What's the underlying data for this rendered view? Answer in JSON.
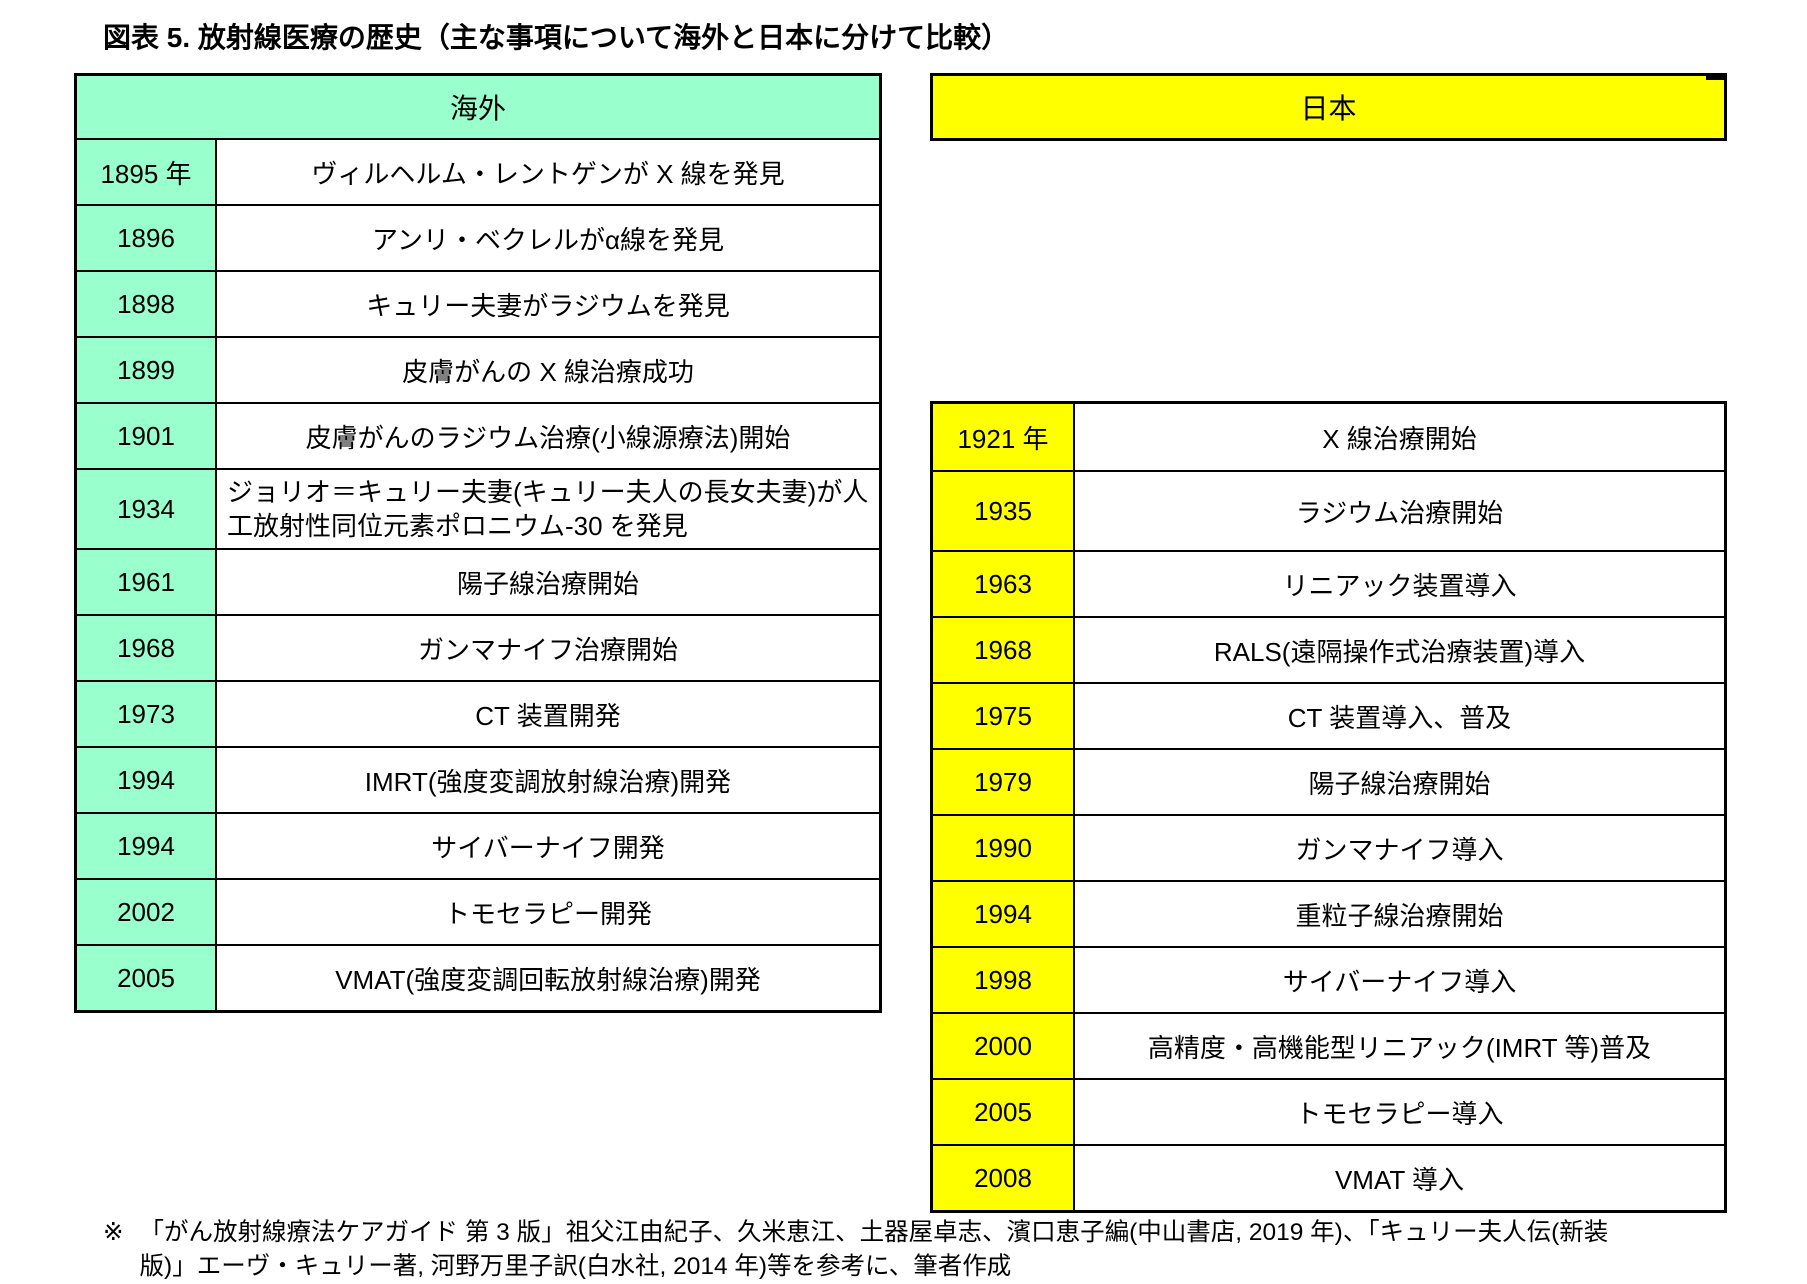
{
  "title": "図表 5. 放射線医療の歴史（主な事項について海外と日本に分けて比較）",
  "colors": {
    "overseas_accent": "#99FFCC",
    "japan_accent": "#FFFF00",
    "border": "#000000",
    "text": "#000000"
  },
  "overseas": {
    "header": "海外",
    "rows": [
      {
        "year": "1895 年",
        "event": "ヴィルヘルム・レントゲンが X 線を発見"
      },
      {
        "year": "1896",
        "event": "アンリ・ベクレルがα線を発見"
      },
      {
        "year": "1898",
        "event": "キュリー夫妻がラジウムを発見"
      },
      {
        "year": "1899",
        "event": "皮膚がんの X 線治療成功"
      },
      {
        "year": "1901",
        "event": "皮膚がんのラジウム治療(小線源療法)開始"
      },
      {
        "year": "1934",
        "event": "ジョリオ＝キュリー夫妻(キュリー夫人の長女夫妻)が人工放射性同位元素ポロニウム-30 を発見"
      },
      {
        "year": "1961",
        "event": "陽子線治療開始"
      },
      {
        "year": "1968",
        "event": "ガンマナイフ治療開始"
      },
      {
        "year": "1973",
        "event": "CT 装置開発"
      },
      {
        "year": "1994",
        "event": "IMRT(強度変調放射線治療)開発"
      },
      {
        "year": "1994",
        "event": "サイバーナイフ開発"
      },
      {
        "year": "2002",
        "event": "トモセラピー開発"
      },
      {
        "year": "2005",
        "event": "VMAT(強度変調回転放射線治療)開発"
      }
    ]
  },
  "japan": {
    "header": "日本",
    "rows": [
      {
        "year": "1921 年",
        "event": "X 線治療開始"
      },
      {
        "year": "1935",
        "event": "ラジウム治療開始"
      },
      {
        "year": "1963",
        "event": "リニアック装置導入"
      },
      {
        "year": "1968",
        "event": "RALS(遠隔操作式治療装置)導入"
      },
      {
        "year": "1975",
        "event": "CT 装置導入、普及"
      },
      {
        "year": "1979",
        "event": "陽子線治療開始"
      },
      {
        "year": "1990",
        "event": "ガンマナイフ導入"
      },
      {
        "year": "1994",
        "event": "重粒子線治療開始"
      },
      {
        "year": "1998",
        "event": "サイバーナイフ導入"
      },
      {
        "year": "2000",
        "event": "高精度・高機能型リニアック(IMRT 等)普及"
      },
      {
        "year": "2005",
        "event": "トモセラピー導入"
      },
      {
        "year": "2008",
        "event": "VMAT 導入"
      }
    ]
  },
  "footnote": {
    "marker": "※",
    "line1": "「がん放射線療法ケアガイド 第 3 版」祖父江由紀子、久米恵江、土器屋卓志、濱口恵子編(中山書店, 2019 年)、「キュリー夫人伝(新装",
    "line2": "版)」エーヴ・キュリー著, 河野万里子訳(白水社, 2014 年)等を参考に、筆者作成"
  }
}
